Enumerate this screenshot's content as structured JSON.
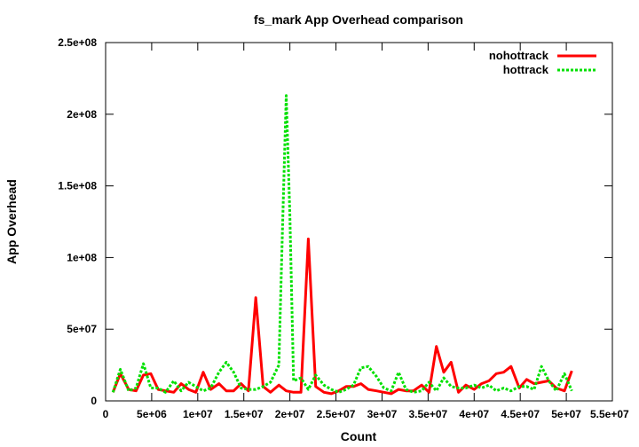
{
  "chart_data": {
    "type": "line",
    "title": "fs_mark App Overhead comparison",
    "xlabel": "Count",
    "ylabel": "App Overhead",
    "xlim": [
      0,
      55000000
    ],
    "ylim": [
      0,
      250000000
    ],
    "x_ticks": [
      {
        "value": 0,
        "label": "0"
      },
      {
        "value": 5000000,
        "label": "5e+06"
      },
      {
        "value": 10000000,
        "label": "1e+07"
      },
      {
        "value": 15000000,
        "label": "1.5e+07"
      },
      {
        "value": 20000000,
        "label": "2e+07"
      },
      {
        "value": 25000000,
        "label": "2.5e+07"
      },
      {
        "value": 30000000,
        "label": "3e+07"
      },
      {
        "value": 35000000,
        "label": "3.5e+07"
      },
      {
        "value": 40000000,
        "label": "4e+07"
      },
      {
        "value": 45000000,
        "label": "4.5e+07"
      },
      {
        "value": 50000000,
        "label": "5e+07"
      },
      {
        "value": 55000000,
        "label": "5.5e+07"
      }
    ],
    "y_ticks": [
      {
        "value": 0,
        "label": "0"
      },
      {
        "value": 50000000,
        "label": "5e+07"
      },
      {
        "value": 100000000,
        "label": "1e+08"
      },
      {
        "value": 150000000,
        "label": "1.5e+08"
      },
      {
        "value": 200000000,
        "label": "2e+08"
      },
      {
        "value": 250000000,
        "label": "2.5e+08"
      }
    ],
    "legend_position": "top-right",
    "grid": false,
    "series": [
      {
        "name": "nohottrack",
        "color": "#ff0000",
        "dash": "solid",
        "x": [
          800000,
          1600000,
          2500000,
          3300000,
          4100000,
          4900000,
          5700000,
          6500000,
          7400000,
          8200000,
          9000000,
          9800000,
          10600000,
          11400000,
          12300000,
          13100000,
          13900000,
          14700000,
          15500000,
          16300000,
          17100000,
          17900000,
          18800000,
          19600000,
          20400000,
          21200000,
          22000000,
          22800000,
          23700000,
          24500000,
          25300000,
          26100000,
          26900000,
          27700000,
          28500000,
          29400000,
          30200000,
          31000000,
          31800000,
          32600000,
          33400000,
          34300000,
          35100000,
          35900000,
          36700000,
          37500000,
          38300000,
          39100000,
          40000000,
          40800000,
          41600000,
          42400000,
          43200000,
          44000000,
          44900000,
          45700000,
          46500000,
          47300000,
          48100000,
          48900000,
          49800000,
          50600000
        ],
        "values": [
          6000000,
          19000000,
          8000000,
          7000000,
          18000000,
          19000000,
          8000000,
          7000000,
          6000000,
          12000000,
          8000000,
          6000000,
          20000000,
          8000000,
          12000000,
          7000000,
          7000000,
          12000000,
          7000000,
          72000000,
          10000000,
          6000000,
          11000000,
          7000000,
          6000000,
          6000000,
          113000000,
          10000000,
          6000000,
          5000000,
          7000000,
          10000000,
          10000000,
          12000000,
          8000000,
          7000000,
          6000000,
          5000000,
          8000000,
          7000000,
          7000000,
          11000000,
          6000000,
          38000000,
          20000000,
          27000000,
          6000000,
          11000000,
          8000000,
          12000000,
          14000000,
          19000000,
          20000000,
          24000000,
          9000000,
          15000000,
          12000000,
          13000000,
          14000000,
          9000000,
          7000000,
          21000000
        ]
      },
      {
        "name": "hottrack",
        "color": "#00e000",
        "dash": "dashed",
        "x": [
          800000,
          1600000,
          2500000,
          3300000,
          4100000,
          4900000,
          5700000,
          6500000,
          7400000,
          8200000,
          9000000,
          9800000,
          10600000,
          11400000,
          12300000,
          13100000,
          13900000,
          14700000,
          15500000,
          16300000,
          17100000,
          17900000,
          18800000,
          19200000,
          19600000,
          20000000,
          20400000,
          21200000,
          22000000,
          22800000,
          23700000,
          24500000,
          25300000,
          26100000,
          26900000,
          27700000,
          28500000,
          29400000,
          30200000,
          31000000,
          31800000,
          32600000,
          33400000,
          34300000,
          35100000,
          35900000,
          36700000,
          37500000,
          38300000,
          39100000,
          40000000,
          40800000,
          41600000,
          42400000,
          43200000,
          44000000,
          44900000,
          45700000,
          46500000,
          47300000,
          48100000,
          48900000,
          49800000,
          50600000
        ],
        "values": [
          6000000,
          22000000,
          7000000,
          9000000,
          26000000,
          9000000,
          9000000,
          6000000,
          14000000,
          7000000,
          13000000,
          10000000,
          7000000,
          9000000,
          20000000,
          27000000,
          20000000,
          9000000,
          8000000,
          8000000,
          10000000,
          13000000,
          25000000,
          120000000,
          213000000,
          130000000,
          14000000,
          16000000,
          8000000,
          18000000,
          11000000,
          8000000,
          6000000,
          8000000,
          11000000,
          23000000,
          24000000,
          17000000,
          9000000,
          7000000,
          20000000,
          8000000,
          6000000,
          7000000,
          13000000,
          7000000,
          16000000,
          10000000,
          9000000,
          9000000,
          11000000,
          9000000,
          11000000,
          7000000,
          9000000,
          7000000,
          10000000,
          10000000,
          8000000,
          24000000,
          14000000,
          7000000,
          19000000,
          7000000
        ]
      }
    ]
  }
}
